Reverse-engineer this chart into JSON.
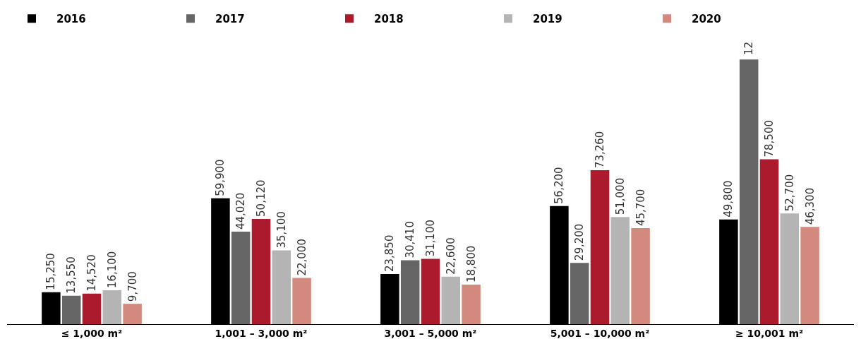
{
  "chart_data": {
    "type": "bar",
    "categories": [
      "≤ 1,000 m²",
      "1,001 – 3,000 m²",
      "3,001 – 5,000 m²",
      "5,001 – 10,000 m²",
      "≥ 10,001 m²"
    ],
    "series": [
      {
        "name": "2016",
        "color": "#000000",
        "values": [
          15250,
          59900,
          23850,
          56200,
          49800
        ],
        "value_labels": [
          "15,250",
          "59,900",
          "23,850",
          "56,200",
          "49,800"
        ]
      },
      {
        "name": "2017",
        "color": "#666666",
        "values": [
          13550,
          44020,
          30410,
          29200,
          126000
        ],
        "value_labels": [
          "13,550",
          "44,020",
          "30,410",
          "29,200",
          null
        ]
      },
      {
        "name": "2018",
        "color": "#ab1a2d",
        "values": [
          14520,
          50120,
          31100,
          73260,
          78500
        ],
        "value_labels": [
          "14,520",
          "50,120",
          "31,100",
          "73,260",
          "78,500"
        ]
      },
      {
        "name": "2019",
        "color": "#b4b4b4",
        "values": [
          16100,
          35100,
          22600,
          51000,
          52700
        ],
        "value_labels": [
          "16,100",
          "35,100",
          "22,600",
          "51,000",
          "52,700"
        ]
      },
      {
        "name": "2020",
        "color": "#d4897f",
        "values": [
          9700,
          22000,
          18800,
          45700,
          46300
        ],
        "value_labels": [
          "9,700",
          "22,000",
          "18,800",
          "45,700",
          "46,300"
        ]
      }
    ],
    "annotations": [
      "12"
    ],
    "legend": "top left",
    "grid": false
  }
}
